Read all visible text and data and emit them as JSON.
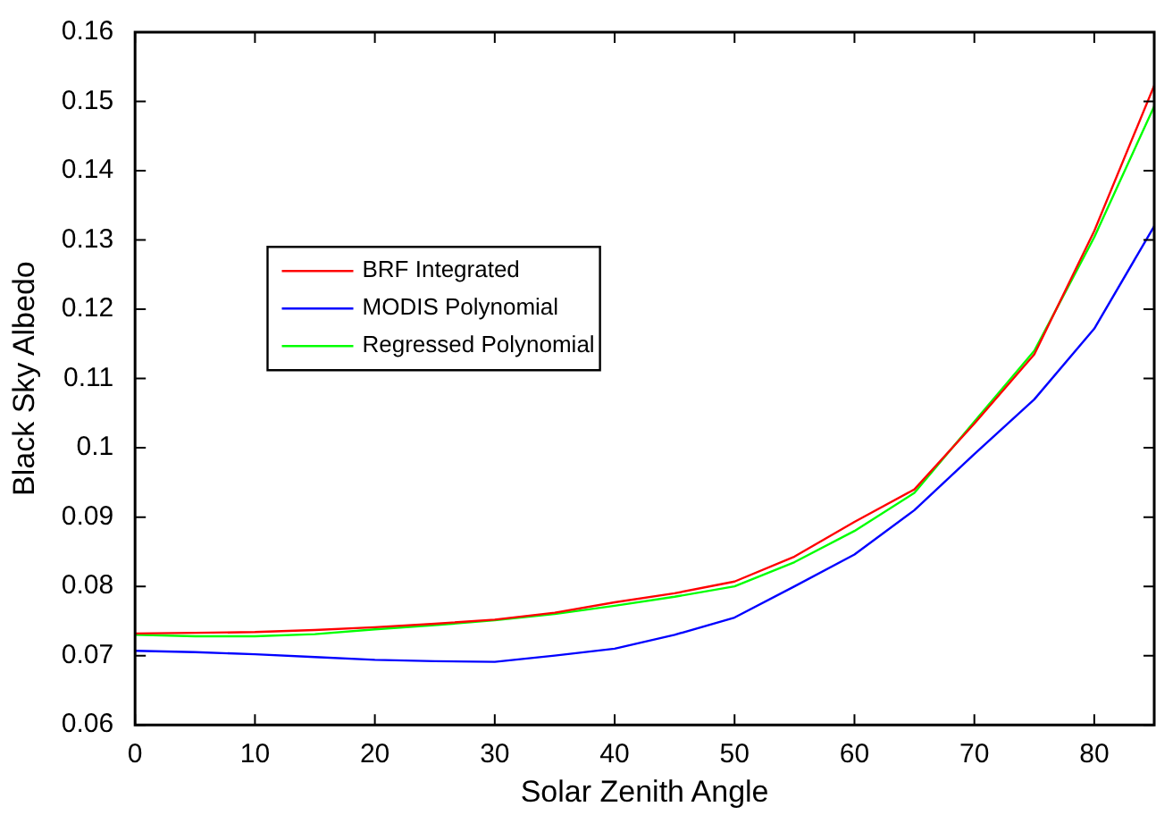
{
  "chart_data": {
    "type": "line",
    "xlabel": "Solar Zenith Angle",
    "ylabel": "Black Sky Albedo",
    "x": [
      0,
      5,
      10,
      15,
      20,
      25,
      30,
      35,
      40,
      45,
      50,
      55,
      60,
      65,
      70,
      75,
      80,
      85
    ],
    "series": [
      {
        "name": "BRF Integrated",
        "color": "#ff0000",
        "values": [
          0.0732,
          0.0733,
          0.0734,
          0.0737,
          0.0741,
          0.0746,
          0.0752,
          0.0762,
          0.0777,
          0.079,
          0.0807,
          0.0843,
          0.0893,
          0.094,
          0.1035,
          0.1135,
          0.1313,
          0.1523
        ]
      },
      {
        "name": "MODIS Polynomial",
        "color": "#0000ff",
        "values": [
          0.0707,
          0.0705,
          0.0702,
          0.0698,
          0.0694,
          0.0692,
          0.0691,
          0.07,
          0.071,
          0.073,
          0.0755,
          0.08,
          0.0846,
          0.091,
          0.0991,
          0.107,
          0.1172,
          0.132
        ]
      },
      {
        "name": "Regressed Polynomial",
        "color": "#00ff00",
        "values": [
          0.073,
          0.0728,
          0.0728,
          0.0731,
          0.0738,
          0.0744,
          0.0751,
          0.076,
          0.0772,
          0.0785,
          0.08,
          0.0835,
          0.088,
          0.0935,
          0.1038,
          0.114,
          0.1304,
          0.1493
        ]
      }
    ],
    "xlim": [
      0,
      85
    ],
    "xticks": [
      0,
      10,
      20,
      30,
      40,
      50,
      60,
      70,
      80
    ],
    "ylim": [
      0.06,
      0.16
    ],
    "yticks": [
      0.06,
      0.07,
      0.08,
      0.09,
      0.1,
      0.11,
      0.12,
      0.13,
      0.14,
      0.15,
      0.16
    ],
    "grid": false,
    "legend": "left",
    "marker": "none",
    "line_style": "solid"
  }
}
